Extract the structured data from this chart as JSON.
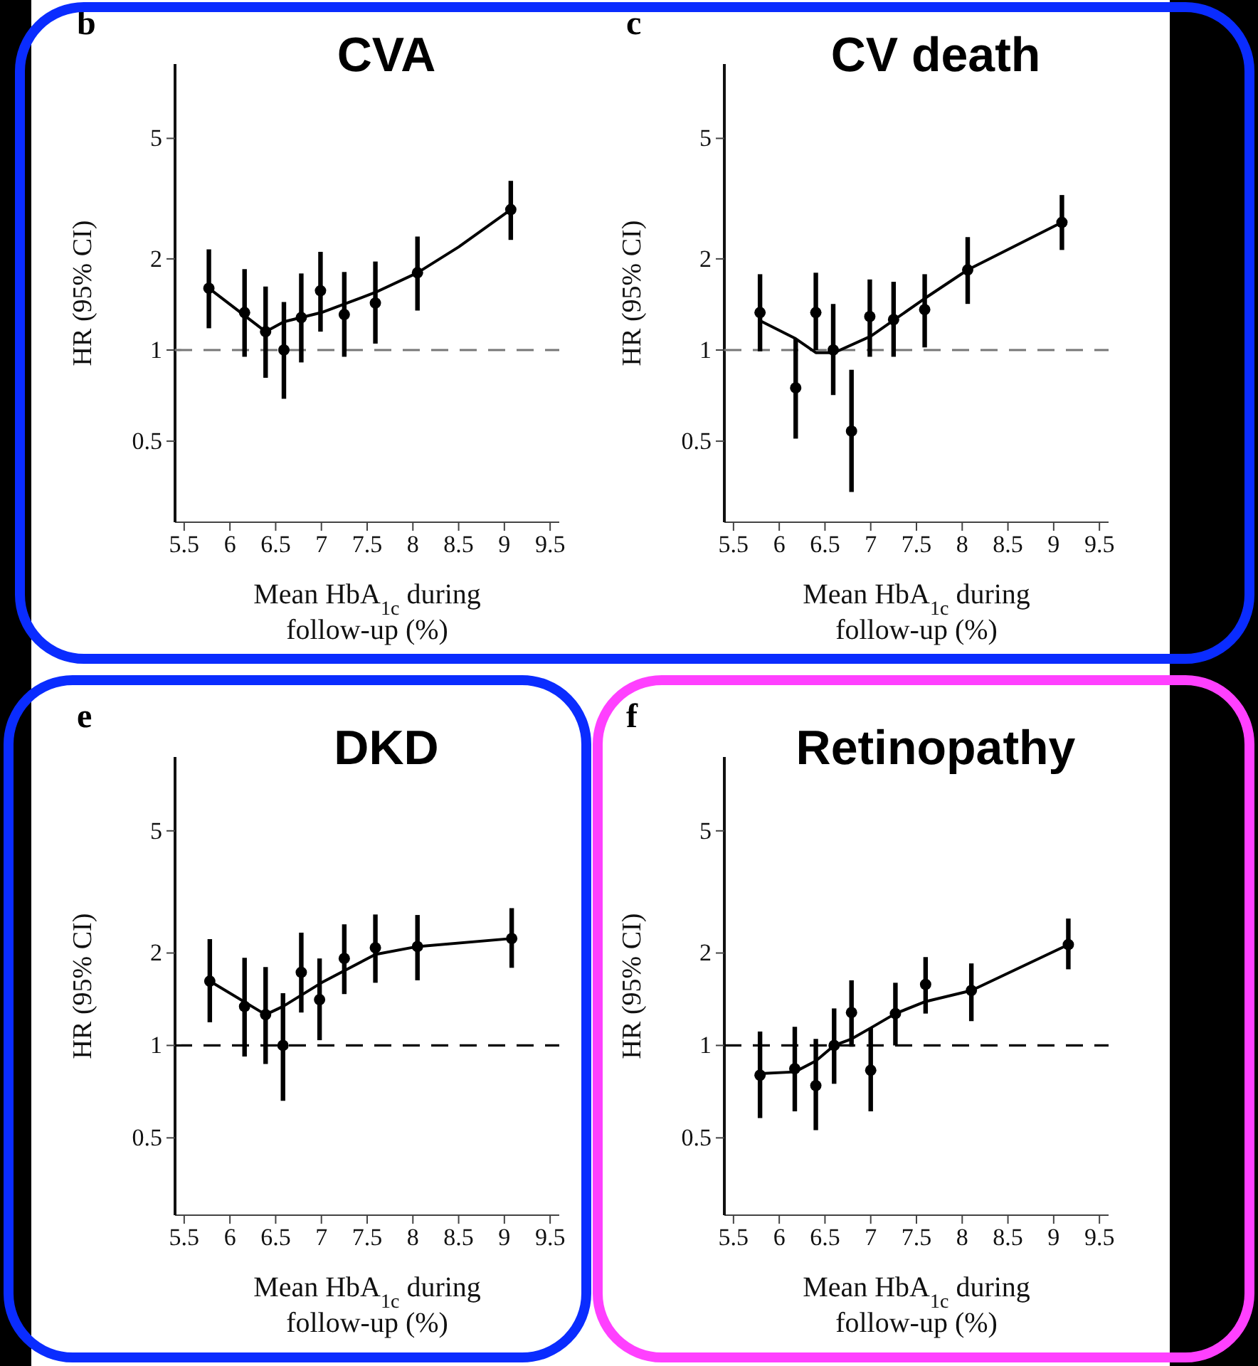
{
  "chart_data": [
    {
      "type": "scatter",
      "title": "CVA",
      "xlabel": "Mean HbA$_{1c}$ during follow-up (%)",
      "ylabel": "HR (95% CI)",
      "annotations": [
        "b"
      ],
      "log": true,
      "marker": "circle",
      "xlim": [
        5.4,
        9.6
      ],
      "xticks": [
        5.5,
        6,
        6.5,
        7,
        7.5,
        8,
        8.5,
        9,
        9.5
      ],
      "ylim": [
        0.27,
        8.8
      ],
      "yticks": [
        0.5,
        1,
        2,
        5
      ],
      "ref_lines": [
        {
          "axis": "y",
          "value": 1,
          "color": "#777777",
          "line_style": "dashed"
        }
      ],
      "series": [
        {
          "type": "scatter",
          "color": "#000000",
          "x": [
            5.77,
            6.16,
            6.39,
            6.59,
            6.78,
            6.99,
            7.25,
            7.59,
            8.05,
            9.07
          ],
          "values": [
            1.6,
            1.33,
            1.15,
            1.0,
            1.28,
            1.57,
            1.31,
            1.43,
            1.8,
            2.91
          ],
          "errors": [
            [
              1.18,
              2.15
            ],
            [
              0.95,
              1.85
            ],
            [
              0.81,
              1.62
            ],
            [
              0.69,
              1.44
            ],
            [
              0.91,
              1.79
            ],
            [
              1.15,
              2.11
            ],
            [
              0.95,
              1.81
            ],
            [
              1.05,
              1.96
            ],
            [
              1.35,
              2.37
            ],
            [
              2.31,
              3.62
            ]
          ]
        },
        {
          "type": "line",
          "color": "#000000",
          "marker": "none",
          "x": [
            5.77,
            6.39,
            6.59,
            7.0,
            7.59,
            8.05,
            8.5,
            9.07
          ],
          "values": [
            1.6,
            1.15,
            1.24,
            1.33,
            1.55,
            1.8,
            2.19,
            2.91
          ]
        }
      ]
    },
    {
      "type": "scatter",
      "title": "CV death",
      "xlabel": "Mean HbA$_{1c}$ during follow-up (%)",
      "ylabel": "HR (95% CI)",
      "annotations": [
        "c"
      ],
      "log": true,
      "marker": "circle",
      "xlim": [
        5.4,
        9.6
      ],
      "xticks": [
        5.5,
        6,
        6.5,
        7,
        7.5,
        8,
        8.5,
        9,
        9.5
      ],
      "ylim": [
        0.27,
        8.8
      ],
      "yticks": [
        0.5,
        1,
        2,
        5
      ],
      "ref_lines": [
        {
          "axis": "y",
          "value": 1,
          "color": "#777777",
          "line_style": "dashed"
        }
      ],
      "series": [
        {
          "type": "scatter",
          "color": "#000000",
          "x": [
            5.79,
            6.18,
            6.4,
            6.59,
            6.79,
            6.99,
            7.25,
            7.59,
            8.06,
            9.09
          ],
          "values": [
            1.33,
            0.75,
            1.33,
            1.0,
            0.54,
            1.29,
            1.26,
            1.36,
            1.84,
            2.64
          ],
          "errors": [
            [
              0.99,
              1.78
            ],
            [
              0.51,
              1.09
            ],
            [
              1.0,
              1.8
            ],
            [
              0.71,
              1.42
            ],
            [
              0.34,
              0.86
            ],
            [
              0.95,
              1.71
            ],
            [
              0.95,
              1.68
            ],
            [
              1.02,
              1.78
            ],
            [
              1.42,
              2.36
            ],
            [
              2.14,
              3.25
            ]
          ]
        },
        {
          "type": "line",
          "color": "#000000",
          "marker": "none",
          "x": [
            5.79,
            6.18,
            6.4,
            6.6,
            7.0,
            7.59,
            8.06,
            9.09
          ],
          "values": [
            1.25,
            1.09,
            0.98,
            0.98,
            1.11,
            1.48,
            1.84,
            2.64
          ]
        }
      ]
    },
    {
      "type": "scatter",
      "title": "DKD",
      "xlabel": "Mean HbA$_{1c}$ during follow-up (%)",
      "ylabel": "HR (95% CI)",
      "annotations": [
        "e"
      ],
      "log": true,
      "marker": "circle",
      "xlim": [
        5.4,
        9.6
      ],
      "xticks": [
        5.5,
        6,
        6.5,
        7,
        7.5,
        8,
        8.5,
        9,
        9.5
      ],
      "ylim": [
        0.28,
        8.7
      ],
      "yticks": [
        0.5,
        1,
        2,
        5
      ],
      "ref_lines": [
        {
          "axis": "y",
          "value": 1,
          "color": "#000000",
          "line_style": "dashed"
        }
      ],
      "series": [
        {
          "type": "scatter",
          "color": "#000000",
          "x": [
            5.78,
            6.16,
            6.39,
            6.58,
            6.78,
            6.98,
            7.25,
            7.59,
            8.05,
            9.08
          ],
          "values": [
            1.62,
            1.34,
            1.26,
            1.0,
            1.73,
            1.41,
            1.92,
            2.08,
            2.1,
            2.23
          ],
          "errors": [
            [
              1.19,
              2.22
            ],
            [
              0.92,
              1.93
            ],
            [
              0.87,
              1.8
            ],
            [
              0.66,
              1.48
            ],
            [
              1.28,
              2.33
            ],
            [
              1.04,
              1.92
            ],
            [
              1.47,
              2.48
            ],
            [
              1.6,
              2.67
            ],
            [
              1.63,
              2.66
            ],
            [
              1.79,
              2.8
            ]
          ]
        },
        {
          "type": "line",
          "color": "#000000",
          "marker": "none",
          "x": [
            5.78,
            6.39,
            6.58,
            7.0,
            7.59,
            8.05,
            9.08
          ],
          "values": [
            1.62,
            1.26,
            1.34,
            1.6,
            1.98,
            2.1,
            2.23
          ]
        }
      ]
    },
    {
      "type": "scatter",
      "title": "Retinopathy",
      "xlabel": "Mean HbA$_{1c}$ during follow-up (%)",
      "ylabel": "HR (95% CI)",
      "annotations": [
        "f"
      ],
      "log": true,
      "marker": "circle",
      "xlim": [
        5.4,
        9.6
      ],
      "xticks": [
        5.5,
        6,
        6.5,
        7,
        7.5,
        8,
        8.5,
        9,
        9.5
      ],
      "ylim": [
        0.28,
        8.7
      ],
      "yticks": [
        0.5,
        1,
        2,
        5
      ],
      "ref_lines": [
        {
          "axis": "y",
          "value": 1,
          "color": "#000000",
          "line_style": "dashed"
        }
      ],
      "series": [
        {
          "type": "scatter",
          "color": "#000000",
          "x": [
            5.79,
            6.17,
            6.4,
            6.6,
            6.79,
            7.0,
            7.27,
            7.6,
            8.1,
            9.16
          ],
          "values": [
            0.8,
            0.84,
            0.74,
            1.0,
            1.28,
            0.83,
            1.27,
            1.58,
            1.51,
            2.13
          ],
          "errors": [
            [
              0.58,
              1.11
            ],
            [
              0.61,
              1.15
            ],
            [
              0.53,
              1.05
            ],
            [
              0.75,
              1.32
            ],
            [
              0.99,
              1.63
            ],
            [
              0.61,
              1.14
            ],
            [
              1.0,
              1.6
            ],
            [
              1.27,
              1.94
            ],
            [
              1.2,
              1.85
            ],
            [
              1.77,
              2.59
            ]
          ]
        },
        {
          "type": "line",
          "color": "#000000",
          "marker": "none",
          "x": [
            5.79,
            6.17,
            6.4,
            6.6,
            6.79,
            7.0,
            7.27,
            7.6,
            8.1,
            9.16
          ],
          "values": [
            0.81,
            0.82,
            0.89,
            1.0,
            1.05,
            1.14,
            1.27,
            1.39,
            1.51,
            2.13
          ]
        }
      ]
    }
  ]
}
